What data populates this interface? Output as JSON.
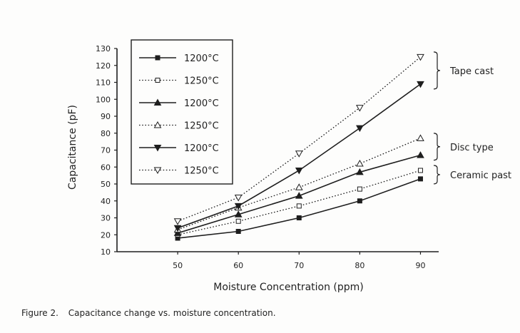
{
  "chart_data": {
    "type": "line",
    "x": [
      50,
      60,
      70,
      80,
      90
    ],
    "xlabel": "Moisture Concentration (ppm)",
    "ylabel": "Capacitance (pF)",
    "xticks": [
      50,
      60,
      70,
      80,
      90
    ],
    "yticks": [
      10,
      20,
      30,
      40,
      50,
      60,
      70,
      80,
      90,
      100,
      110,
      120,
      130
    ],
    "xlim": [
      40,
      93
    ],
    "ylim": [
      10,
      130
    ],
    "grid": false,
    "legend_position": "top-left",
    "series": [
      {
        "name": "1200°C",
        "marker": "filled-square",
        "line": "solid",
        "values": [
          18,
          22,
          30,
          40,
          53
        ]
      },
      {
        "name": "1250°C",
        "marker": "open-square",
        "line": "dotted",
        "values": [
          20,
          28,
          37,
          47,
          58
        ]
      },
      {
        "name": "1200°C",
        "marker": "filled-triangle-up",
        "line": "solid",
        "values": [
          21,
          32,
          43,
          57,
          67
        ]
      },
      {
        "name": "1250°C",
        "marker": "open-triangle-up",
        "line": "dotted",
        "values": [
          23,
          36,
          48,
          62,
          77
        ]
      },
      {
        "name": "1200°C",
        "marker": "filled-triangle-down",
        "line": "solid",
        "values": [
          24,
          37,
          58,
          83,
          109
        ]
      },
      {
        "name": "1250°C",
        "marker": "open-triangle-down",
        "line": "dotted",
        "values": [
          28,
          42,
          68,
          95,
          125
        ]
      }
    ],
    "annotations": [
      {
        "text": "Tape cast",
        "series_index": [
          4,
          5
        ]
      },
      {
        "text": "Disc type",
        "series_index": [
          2,
          3
        ]
      },
      {
        "text": "Ceramic past",
        "series_index": [
          0,
          1
        ]
      }
    ]
  },
  "caption": {
    "label": "Figure 2.",
    "text": "Capacitance change vs. moisture concentration."
  },
  "colors": {
    "ink": "#1e1e1e",
    "paper": "#fdfdfc"
  }
}
